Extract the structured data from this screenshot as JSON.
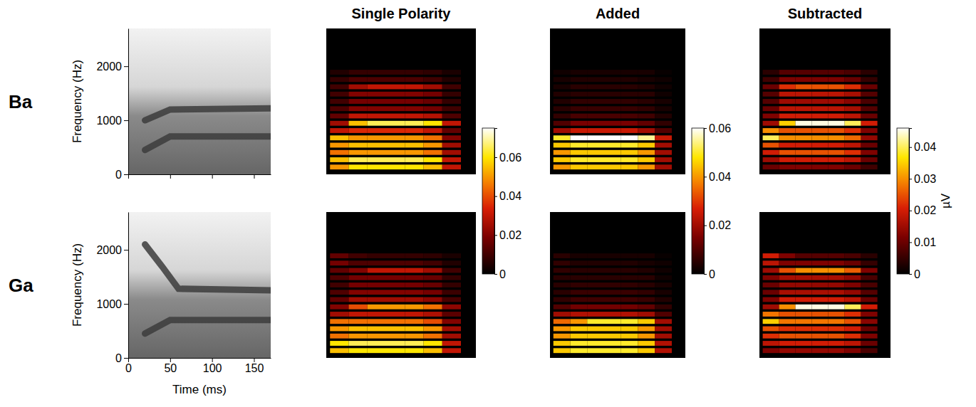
{
  "chart_data": [
    {
      "type": "line",
      "annotations": [
        "Ba"
      ],
      "y_label": "Frequency (Hz)",
      "xlim": [
        0,
        170
      ],
      "xticks": [
        0,
        50,
        100,
        150
      ],
      "ylim": [
        0,
        2700
      ],
      "yticks": [
        0,
        1000,
        2000
      ],
      "tick_labels": "y",
      "series": [
        {
          "color": "#3c3c3c",
          "x": [
            20,
            50,
            170
          ],
          "values": [
            450,
            700,
            700
          ]
        },
        {
          "color": "#3c3c3c",
          "x": [
            20,
            50,
            170
          ],
          "values": [
            1000,
            1200,
            1220
          ]
        }
      ]
    },
    {
      "type": "heatmap",
      "title": "Single Polarity",
      "tick_labels": false,
      "xlim": [
        0,
        200
      ],
      "ylim": [
        0,
        2000
      ],
      "bins": [
        5,
        30,
        55,
        80,
        105,
        130,
        155,
        180
      ],
      "y": [
        100,
        200,
        300,
        400,
        500,
        600,
        700,
        800,
        900,
        1000,
        1100,
        1200,
        1300,
        1400
      ],
      "cells": [
        [
          0.05,
          0.06,
          0.06,
          0.06,
          0.06,
          0.055,
          0.03
        ],
        [
          0.055,
          0.065,
          0.065,
          0.065,
          0.065,
          0.06,
          0.03
        ],
        [
          0.045,
          0.05,
          0.05,
          0.05,
          0.05,
          0.045,
          0.025
        ],
        [
          0.05,
          0.055,
          0.055,
          0.055,
          0.055,
          0.05,
          0.025
        ],
        [
          0.055,
          0.05,
          0.05,
          0.05,
          0.05,
          0.045,
          0.02
        ],
        [
          0.03,
          0.035,
          0.035,
          0.035,
          0.035,
          0.03,
          0.015
        ],
        [
          0.025,
          0.055,
          0.065,
          0.065,
          0.065,
          0.06,
          0.03
        ],
        [
          0.015,
          0.03,
          0.03,
          0.03,
          0.03,
          0.028,
          0.012
        ],
        [
          0.012,
          0.02,
          0.02,
          0.02,
          0.02,
          0.018,
          0.01
        ],
        [
          0.01,
          0.018,
          0.018,
          0.018,
          0.018,
          0.016,
          0.008
        ],
        [
          0.01,
          0.02,
          0.02,
          0.02,
          0.02,
          0.018,
          0.008
        ],
        [
          0.01,
          0.025,
          0.03,
          0.03,
          0.03,
          0.025,
          0.01
        ],
        [
          0.008,
          0.012,
          0.012,
          0.012,
          0.012,
          0.01,
          0.005
        ],
        [
          0.005,
          0.008,
          0.008,
          0.008,
          0.008,
          0.007,
          0.004
        ]
      ],
      "colorbar": {
        "range": [
          0,
          0.075
        ],
        "ticks": [
          0,
          0.02,
          0.04,
          0.06
        ]
      }
    },
    {
      "type": "heatmap",
      "title": "Added",
      "tick_labels": false,
      "xlim": [
        0,
        200
      ],
      "ylim": [
        0,
        2000
      ],
      "bins": [
        5,
        30,
        55,
        80,
        105,
        130,
        155,
        180
      ],
      "y": [
        100,
        200,
        300,
        400,
        500,
        600,
        700,
        800,
        900,
        1000,
        1100,
        1200,
        1300,
        1400
      ],
      "cells": [
        [
          0.04,
          0.045,
          0.045,
          0.045,
          0.045,
          0.04,
          0.02
        ],
        [
          0.045,
          0.05,
          0.05,
          0.05,
          0.05,
          0.045,
          0.02
        ],
        [
          0.04,
          0.045,
          0.045,
          0.045,
          0.045,
          0.04,
          0.02
        ],
        [
          0.045,
          0.05,
          0.05,
          0.05,
          0.05,
          0.045,
          0.02
        ],
        [
          0.05,
          0.06,
          0.06,
          0.06,
          0.06,
          0.055,
          0.025
        ],
        [
          0.02,
          0.025,
          0.025,
          0.025,
          0.025,
          0.02,
          0.01
        ],
        [
          0.01,
          0.015,
          0.015,
          0.015,
          0.015,
          0.012,
          0.006
        ],
        [
          0.006,
          0.009,
          0.009,
          0.009,
          0.009,
          0.008,
          0.004
        ],
        [
          0.005,
          0.007,
          0.007,
          0.007,
          0.007,
          0.006,
          0.003
        ],
        [
          0.004,
          0.006,
          0.006,
          0.006,
          0.006,
          0.005,
          0.003
        ],
        [
          0.004,
          0.005,
          0.005,
          0.005,
          0.005,
          0.005,
          0.002
        ],
        [
          0.003,
          0.005,
          0.005,
          0.005,
          0.005,
          0.004,
          0.002
        ],
        [
          0.003,
          0.004,
          0.004,
          0.004,
          0.004,
          0.003,
          0.002
        ],
        [
          0.002,
          0.003,
          0.003,
          0.003,
          0.003,
          0.003,
          0.001
        ]
      ],
      "colorbar": {
        "range": [
          0,
          0.06
        ],
        "ticks": [
          0,
          0.02,
          0.04,
          0.06
        ]
      }
    },
    {
      "type": "heatmap",
      "title": "Subtracted",
      "tick_labels": false,
      "xlim": [
        0,
        200
      ],
      "ylim": [
        0,
        2000
      ],
      "bins": [
        5,
        30,
        55,
        80,
        105,
        130,
        155,
        180
      ],
      "y": [
        100,
        200,
        300,
        400,
        500,
        600,
        700,
        800,
        900,
        1000,
        1100,
        1200,
        1300,
        1400
      ],
      "cells": [
        [
          0.01,
          0.012,
          0.012,
          0.012,
          0.012,
          0.01,
          0.006
        ],
        [
          0.015,
          0.02,
          0.02,
          0.02,
          0.02,
          0.018,
          0.01
        ],
        [
          0.02,
          0.025,
          0.025,
          0.025,
          0.025,
          0.022,
          0.012
        ],
        [
          0.025,
          0.02,
          0.02,
          0.02,
          0.02,
          0.018,
          0.01
        ],
        [
          0.04,
          0.03,
          0.03,
          0.03,
          0.03,
          0.027,
          0.014
        ],
        [
          0.03,
          0.025,
          0.025,
          0.025,
          0.025,
          0.022,
          0.012
        ],
        [
          0.015,
          0.035,
          0.045,
          0.045,
          0.045,
          0.04,
          0.02
        ],
        [
          0.012,
          0.02,
          0.02,
          0.02,
          0.02,
          0.018,
          0.01
        ],
        [
          0.01,
          0.018,
          0.018,
          0.018,
          0.018,
          0.016,
          0.008
        ],
        [
          0.008,
          0.015,
          0.015,
          0.015,
          0.015,
          0.013,
          0.007
        ],
        [
          0.008,
          0.018,
          0.018,
          0.018,
          0.018,
          0.016,
          0.008
        ],
        [
          0.01,
          0.022,
          0.025,
          0.025,
          0.025,
          0.022,
          0.01
        ],
        [
          0.006,
          0.012,
          0.012,
          0.012,
          0.012,
          0.01,
          0.005
        ],
        [
          0.004,
          0.008,
          0.008,
          0.008,
          0.008,
          0.007,
          0.004
        ]
      ],
      "colorbar": {
        "range": [
          0,
          0.046
        ],
        "ticks": [
          0,
          0.01,
          0.02,
          0.03,
          0.04
        ],
        "label": "µV"
      }
    },
    {
      "type": "line",
      "annotations": [
        "Ga"
      ],
      "y_label": "Frequency (Hz)",
      "x_label": "Time (ms)",
      "xlim": [
        0,
        170
      ],
      "xticks": [
        0,
        50,
        100,
        150
      ],
      "ylim": [
        0,
        2700
      ],
      "yticks": [
        0,
        1000,
        2000
      ],
      "series": [
        {
          "color": "#3c3c3c",
          "x": [
            20,
            50,
            170
          ],
          "values": [
            450,
            700,
            700
          ]
        },
        {
          "color": "#3c3c3c",
          "x": [
            20,
            40,
            60,
            170
          ],
          "values": [
            2100,
            1700,
            1280,
            1250
          ]
        }
      ]
    },
    {
      "type": "heatmap",
      "tick_labels": false,
      "xlim": [
        0,
        200
      ],
      "ylim": [
        0,
        2000
      ],
      "bins": [
        5,
        30,
        55,
        80,
        105,
        130,
        155,
        180
      ],
      "y": [
        100,
        200,
        300,
        400,
        500,
        600,
        700,
        800,
        900,
        1000,
        1100,
        1200,
        1300,
        1400
      ],
      "cells": [
        [
          0.055,
          0.06,
          0.06,
          0.06,
          0.06,
          0.055,
          0.03
        ],
        [
          0.06,
          0.065,
          0.065,
          0.065,
          0.065,
          0.06,
          0.03
        ],
        [
          0.045,
          0.05,
          0.05,
          0.05,
          0.05,
          0.045,
          0.025
        ],
        [
          0.05,
          0.055,
          0.055,
          0.055,
          0.055,
          0.05,
          0.025
        ],
        [
          0.045,
          0.045,
          0.045,
          0.045,
          0.045,
          0.04,
          0.02
        ],
        [
          0.025,
          0.03,
          0.03,
          0.03,
          0.03,
          0.027,
          0.014
        ],
        [
          0.02,
          0.04,
          0.05,
          0.05,
          0.05,
          0.045,
          0.022
        ],
        [
          0.015,
          0.025,
          0.025,
          0.025,
          0.025,
          0.022,
          0.011
        ],
        [
          0.012,
          0.02,
          0.02,
          0.02,
          0.02,
          0.018,
          0.009
        ],
        [
          0.01,
          0.018,
          0.018,
          0.018,
          0.018,
          0.016,
          0.008
        ],
        [
          0.012,
          0.018,
          0.018,
          0.018,
          0.018,
          0.016,
          0.008
        ],
        [
          0.015,
          0.02,
          0.03,
          0.03,
          0.03,
          0.025,
          0.01
        ],
        [
          0.018,
          0.012,
          0.012,
          0.012,
          0.012,
          0.01,
          0.005
        ],
        [
          0.015,
          0.01,
          0.008,
          0.008,
          0.008,
          0.007,
          0.004
        ]
      ]
    },
    {
      "type": "heatmap",
      "tick_labels": false,
      "xlim": [
        0,
        200
      ],
      "ylim": [
        0,
        2000
      ],
      "bins": [
        5,
        30,
        55,
        80,
        105,
        130,
        155,
        180
      ],
      "y": [
        100,
        200,
        300,
        400,
        500,
        600,
        700,
        800,
        900,
        1000,
        1100,
        1200,
        1300,
        1400
      ],
      "cells": [
        [
          0.045,
          0.05,
          0.05,
          0.05,
          0.05,
          0.045,
          0.022
        ],
        [
          0.045,
          0.05,
          0.05,
          0.05,
          0.05,
          0.045,
          0.022
        ],
        [
          0.04,
          0.045,
          0.045,
          0.045,
          0.045,
          0.04,
          0.02
        ],
        [
          0.04,
          0.045,
          0.045,
          0.045,
          0.045,
          0.04,
          0.02
        ],
        [
          0.035,
          0.04,
          0.05,
          0.05,
          0.05,
          0.045,
          0.02
        ],
        [
          0.02,
          0.022,
          0.022,
          0.022,
          0.022,
          0.02,
          0.01
        ],
        [
          0.01,
          0.014,
          0.014,
          0.014,
          0.014,
          0.012,
          0.006
        ],
        [
          0.006,
          0.008,
          0.008,
          0.008,
          0.008,
          0.007,
          0.004
        ],
        [
          0.005,
          0.007,
          0.007,
          0.007,
          0.007,
          0.006,
          0.003
        ],
        [
          0.005,
          0.006,
          0.006,
          0.006,
          0.006,
          0.005,
          0.003
        ],
        [
          0.005,
          0.005,
          0.005,
          0.005,
          0.005,
          0.005,
          0.002
        ],
        [
          0.006,
          0.005,
          0.005,
          0.005,
          0.005,
          0.004,
          0.002
        ],
        [
          0.006,
          0.004,
          0.004,
          0.004,
          0.004,
          0.003,
          0.002
        ],
        [
          0.005,
          0.003,
          0.003,
          0.003,
          0.003,
          0.003,
          0.001
        ]
      ]
    },
    {
      "type": "heatmap",
      "tick_labels": false,
      "xlim": [
        0,
        200
      ],
      "ylim": [
        0,
        2000
      ],
      "bins": [
        5,
        30,
        55,
        80,
        105,
        130,
        155,
        180
      ],
      "y": [
        100,
        200,
        300,
        400,
        500,
        600,
        700,
        800,
        900,
        1000,
        1100,
        1200,
        1300,
        1400
      ],
      "cells": [
        [
          0.012,
          0.014,
          0.014,
          0.014,
          0.014,
          0.012,
          0.007
        ],
        [
          0.018,
          0.02,
          0.02,
          0.02,
          0.02,
          0.018,
          0.01
        ],
        [
          0.022,
          0.025,
          0.025,
          0.025,
          0.025,
          0.022,
          0.012
        ],
        [
          0.025,
          0.022,
          0.022,
          0.022,
          0.022,
          0.02,
          0.01
        ],
        [
          0.035,
          0.028,
          0.028,
          0.028,
          0.028,
          0.025,
          0.013
        ],
        [
          0.028,
          0.025,
          0.025,
          0.025,
          0.025,
          0.022,
          0.012
        ],
        [
          0.015,
          0.03,
          0.045,
          0.045,
          0.045,
          0.04,
          0.02
        ],
        [
          0.012,
          0.02,
          0.02,
          0.02,
          0.02,
          0.018,
          0.01
        ],
        [
          0.01,
          0.016,
          0.016,
          0.016,
          0.016,
          0.014,
          0.008
        ],
        [
          0.01,
          0.014,
          0.014,
          0.014,
          0.014,
          0.012,
          0.007
        ],
        [
          0.012,
          0.016,
          0.016,
          0.016,
          0.016,
          0.014,
          0.007
        ],
        [
          0.015,
          0.025,
          0.03,
          0.03,
          0.03,
          0.026,
          0.012
        ],
        [
          0.018,
          0.012,
          0.012,
          0.012,
          0.012,
          0.01,
          0.005
        ],
        [
          0.02,
          0.012,
          0.008,
          0.008,
          0.008,
          0.007,
          0.004
        ]
      ]
    }
  ]
}
